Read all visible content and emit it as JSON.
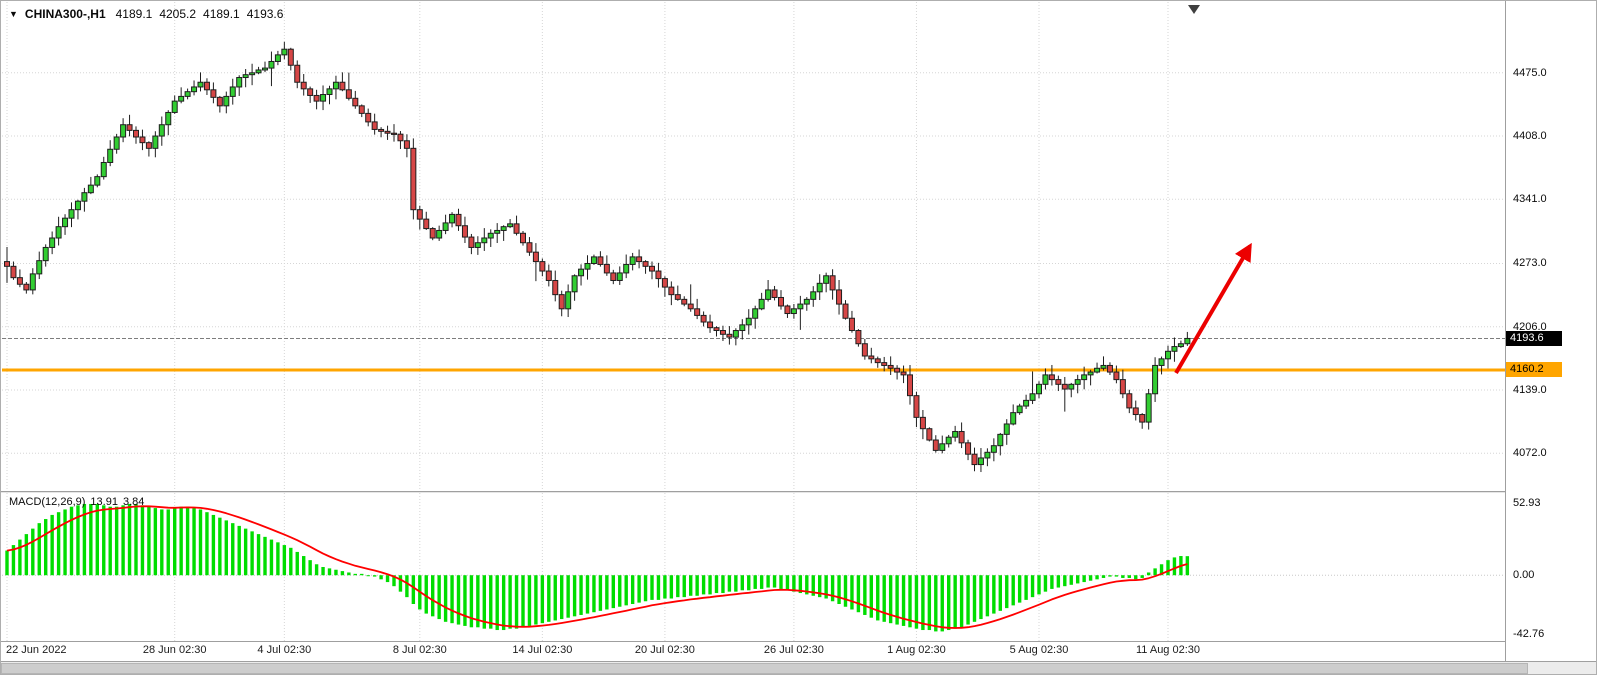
{
  "header": {
    "symbol_period": "CHINA300-,H1",
    "open": "4189.1",
    "high": "4205.2",
    "low": "4189.1",
    "close": "4193.6"
  },
  "indicator": {
    "name": "MACD(12,26,9)",
    "value_main": "13.91",
    "value_signal": "3.84"
  },
  "price_axis": {
    "items": [
      {
        "label": "4475.0",
        "value": 4475.0
      },
      {
        "label": "4408.0",
        "value": 4408.0
      },
      {
        "label": "4341.0",
        "value": 4341.0
      },
      {
        "label": "4273.0",
        "value": 4273.0
      },
      {
        "label": "4206.0",
        "value": 4206.0
      },
      {
        "label": "4139.0",
        "value": 4139.0
      },
      {
        "label": "4072.0",
        "value": 4072.0
      }
    ],
    "badges": [
      {
        "label": "4193.6",
        "value": 4193.6,
        "kind": "last"
      },
      {
        "label": "4160.2",
        "value": 4160.2,
        "kind": "hline"
      }
    ]
  },
  "macd_axis": {
    "items": [
      {
        "label": "52.93",
        "value": 52.93
      },
      {
        "label": "0.00",
        "value": 0.0
      },
      {
        "label": "-42.76",
        "value": -42.76
      }
    ]
  },
  "colors": {
    "bull": "#32CD32",
    "bear": "#D64646",
    "candle_stroke": "#1e1e1e",
    "grid": "#d6d6d6",
    "hline": "#FFA500",
    "bid_line": "#7d7d7d",
    "macd_hist": "#00DD00",
    "macd_signal": "#FF0000",
    "arrow": "#EC0000",
    "shift_marker": "#3f3f3f"
  },
  "chart_data": [
    {
      "type": "candlestick",
      "name": "CHINA300- H1 price",
      "ylim": [
        4032,
        4550
      ],
      "y_gridlines": [
        4475,
        4408,
        4341,
        4273,
        4206,
        4139,
        4072
      ],
      "x_ticks": [
        {
          "bar": 0,
          "label": "22 Jun 2022"
        },
        {
          "bar": 26,
          "label": "28 Jun 02:30"
        },
        {
          "bar": 43,
          "label": "4 Jul 02:30"
        },
        {
          "bar": 64,
          "label": "8 Jul 02:30"
        },
        {
          "bar": 83,
          "label": "14 Jul 02:30"
        },
        {
          "bar": 102,
          "label": "20 Jul 02:30"
        },
        {
          "bar": 122,
          "label": "26 Jul 02:30"
        },
        {
          "bar": 141,
          "label": "1 Aug 02:30"
        },
        {
          "bar": 160,
          "label": "5 Aug 02:30"
        },
        {
          "bar": 180,
          "label": "11 Aug 02:30"
        }
      ],
      "first_open": 4275,
      "closes": [
        4270,
        4258,
        4251,
        4245,
        4262,
        4276,
        4290,
        4300,
        4312,
        4321,
        4330,
        4339,
        4348,
        4356,
        4365,
        4380,
        4394,
        4407,
        4420,
        4414,
        4407,
        4401,
        4395,
        4408,
        4420,
        4433,
        4445,
        4450,
        4455,
        4460,
        4465,
        4457,
        4449,
        4440,
        4450,
        4460,
        4470,
        4473,
        4475,
        4478,
        4480,
        4487,
        4494,
        4500,
        4483,
        4465,
        4458,
        4451,
        4445,
        4452,
        4458,
        4465,
        4457,
        4448,
        4440,
        4432,
        4423,
        4415,
        4413,
        4411,
        4410,
        4403,
        4395,
        4330,
        4320,
        4310,
        4300,
        4308,
        4316,
        4325,
        4313,
        4301,
        4290,
        4295,
        4300,
        4305,
        4308,
        4312,
        4315,
        4305,
        4295,
        4285,
        4275,
        4265,
        4255,
        4240,
        4225,
        4243,
        4260,
        4267,
        4273,
        4280,
        4272,
        4263,
        4255,
        4263,
        4272,
        4280,
        4275,
        4270,
        4265,
        4257,
        4248,
        4240,
        4235,
        4230,
        4225,
        4218,
        4211,
        4205,
        4202,
        4198,
        4195,
        4202,
        4208,
        4215,
        4225,
        4235,
        4245,
        4237,
        4228,
        4220,
        4225,
        4230,
        4235,
        4243,
        4252,
        4260,
        4245,
        4230,
        4215,
        4202,
        4188,
        4175,
        4172,
        4168,
        4165,
        4162,
        4158,
        4155,
        4133,
        4110,
        4098,
        4086,
        4075,
        4082,
        4089,
        4095,
        4083,
        4071,
        4060,
        4067,
        4073,
        4080,
        4092,
        4103,
        4115,
        4122,
        4128,
        4135,
        4145,
        4155,
        4150,
        4145,
        4140,
        4145,
        4150,
        4155,
        4158,
        4162,
        4165,
        4158,
        4150,
        4135,
        4120,
        4113,
        4105,
        4135,
        4165,
        4172,
        4180,
        4185,
        4188,
        4193.6
      ],
      "current": {
        "open": 4189.1,
        "high": 4205.2,
        "low": 4189.1,
        "close": 4193.6
      },
      "objects": {
        "horizontal_line_price": 4160.2,
        "arrow": {
          "name": "bullish-trend-arrow",
          "from": [
            1174,
            371
          ],
          "to": [
            1248,
            244
          ]
        },
        "shift_marker_x": 1192
      }
    },
    {
      "type": "bar",
      "name": "MACD(12,26,9)",
      "ylim": [
        -48,
        60
      ],
      "y_gridlines": [
        0
      ],
      "signal_period": 9,
      "current_macd": 13.91,
      "current_signal": 3.84,
      "values": [
        18,
        22,
        26,
        30,
        34,
        38,
        41,
        44,
        46,
        48,
        50,
        51,
        52,
        52,
        52,
        51,
        50,
        50,
        51,
        52,
        52,
        51,
        50,
        49,
        48,
        48,
        49,
        50,
        50,
        49,
        48,
        46,
        44,
        42,
        40,
        38,
        36,
        34,
        32,
        30,
        28,
        26,
        24,
        22,
        20,
        17,
        14,
        11,
        8,
        6,
        5,
        4,
        3,
        2,
        1,
        1,
        0,
        -1,
        -3,
        -5,
        -8,
        -12,
        -16,
        -21,
        -25,
        -28,
        -30,
        -32,
        -34,
        -35,
        -36,
        -37,
        -38,
        -38,
        -39,
        -39,
        -40,
        -40,
        -39,
        -39,
        -38,
        -37,
        -36,
        -35,
        -34,
        -33,
        -32,
        -31,
        -30,
        -29,
        -28,
        -27,
        -26,
        -25,
        -24,
        -23,
        -22,
        -21,
        -20,
        -19,
        -18,
        -18,
        -17,
        -17,
        -16,
        -16,
        -15,
        -15,
        -14,
        -14,
        -13,
        -13,
        -12,
        -12,
        -11,
        -11,
        -10,
        -10,
        -9,
        -9,
        -10,
        -11,
        -12,
        -13,
        -14,
        -15,
        -16,
        -17,
        -19,
        -21,
        -23,
        -25,
        -27,
        -29,
        -31,
        -33,
        -34,
        -35,
        -36,
        -37,
        -38,
        -39,
        -40,
        -40,
        -41,
        -41,
        -40,
        -39,
        -38,
        -36,
        -34,
        -32,
        -30,
        -28,
        -26,
        -24,
        -22,
        -20,
        -18,
        -16,
        -14,
        -12,
        -10,
        -9,
        -8,
        -7,
        -6,
        -5,
        -4,
        -3,
        -2,
        -1,
        -1,
        -2,
        -2,
        -3,
        -2,
        2,
        5,
        8,
        11,
        13,
        14,
        13.91
      ]
    }
  ]
}
